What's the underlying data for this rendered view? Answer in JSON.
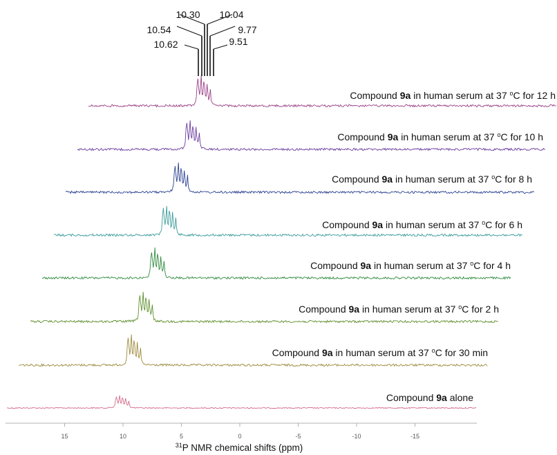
{
  "chart_data": {
    "type": "line",
    "title": "",
    "xlabel": "31P NMR chemical shifts (ppm)",
    "xlabel_sup": "31",
    "xlabel_main": "P NMR chemical shifts (ppm)",
    "ylabel": "",
    "x_reversed": true,
    "xlim": [
      19.5,
      -19.5
    ],
    "xticks": [
      15,
      10,
      5,
      0,
      -5,
      -10,
      -15
    ],
    "xtick_labels": [
      "15",
      "10",
      "5",
      "0",
      "-5",
      "-10",
      "-15"
    ],
    "peak_labels": [
      "10.62",
      "10.54",
      "10.30",
      "10.04",
      "9.77",
      "9.51"
    ],
    "peaks_ppm": [
      10.62,
      10.54,
      10.3,
      10.04,
      9.77,
      9.51
    ],
    "series": [
      {
        "name": "Compound 9a alone",
        "label_pre": "Compound ",
        "label_bold": "9a",
        "label_post": " alone",
        "color": "#d36b8a"
      },
      {
        "name": "Compound 9a in human serum at 37 oC for 30 min",
        "label_pre": "Compound ",
        "label_bold": "9a",
        "label_post": " in human serum at 37 ",
        "label_sup": "o",
        "label_end": "C for 30 min",
        "color": "#9c8a3c"
      },
      {
        "name": "Compound 9a in human serum at 37 oC for 2 h",
        "label_pre": "Compound ",
        "label_bold": "9a",
        "label_post": " in human serum at 37 ",
        "label_sup": "o",
        "label_end": "C for 2 h",
        "color": "#5e8f2e"
      },
      {
        "name": "Compound 9a in human serum at 37 oC for 4 h",
        "label_pre": "Compound ",
        "label_bold": "9a",
        "label_post": " in human serum at 37 ",
        "label_sup": "o",
        "label_end": "C for 4 h",
        "color": "#2e8a3c"
      },
      {
        "name": "Compound 9a in human serum at 37 oC for 6 h",
        "label_pre": "Compound ",
        "label_bold": "9a",
        "label_post": " in human serum at 37 ",
        "label_sup": "o",
        "label_end": "C for 6 h",
        "color": "#3a9a9a"
      },
      {
        "name": "Compound 9a in human serum at 37 oC for 8 h",
        "label_pre": "Compound ",
        "label_bold": "9a",
        "label_post": " in human serum at 37 ",
        "label_sup": "o",
        "label_end": "C for 8 h",
        "color": "#2a3f8f"
      },
      {
        "name": "Compound 9a in human serum at 37 oC for 10 h",
        "label_pre": "Compound ",
        "label_bold": "9a",
        "label_post": " in human serum at 37 ",
        "label_sup": "o",
        "label_end": "C for 10 h",
        "color": "#6a3b9e"
      },
      {
        "name": "Compound 9a in human serum at 37 oC for 12 h",
        "label_pre": "Compound ",
        "label_bold": "9a",
        "label_post": " in human serum at 37 ",
        "label_sup": "o",
        "label_end": "C for 12 h",
        "color": "#9a3f86"
      }
    ]
  }
}
